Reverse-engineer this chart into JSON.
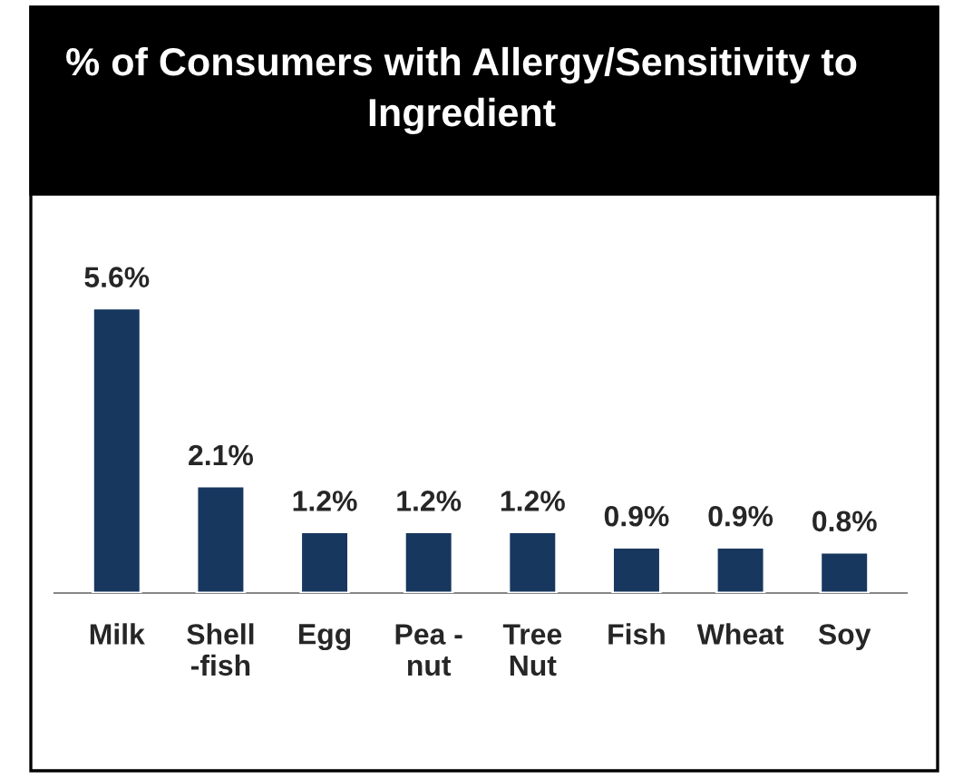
{
  "chart_data": {
    "type": "bar",
    "title": "% of Consumers with Allergy/Sensitivity to Ingredient",
    "categories": [
      "Milk",
      "Shell\n-fish",
      "Egg",
      "Pea -\nnut",
      "Tree\nNut",
      "Fish",
      "Wheat",
      "Soy"
    ],
    "values": [
      5.6,
      2.1,
      1.2,
      1.2,
      1.2,
      0.9,
      0.9,
      0.8
    ],
    "value_labels": [
      "5.6%",
      "2.1%",
      "1.2%",
      "1.2%",
      "1.2%",
      "0.9%",
      "0.9%",
      "0.8%"
    ],
    "color": "#17375e"
  }
}
